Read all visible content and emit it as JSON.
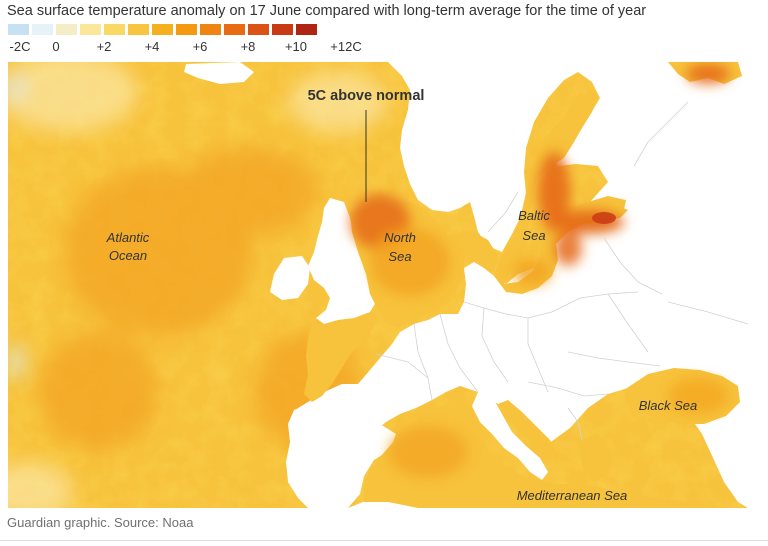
{
  "title": "Sea surface temperature anomaly on 17 June compared with long-term average for the time of year",
  "legend": {
    "ticks": [
      "-2C",
      "0",
      "+2",
      "+4",
      "+6",
      "+8",
      "+10",
      "+12C"
    ],
    "colors": [
      "#c6e1f3",
      "#e7f1f8",
      "#f4edc6",
      "#fbe69a",
      "#f9d865",
      "#f7c540",
      "#f5b020",
      "#f39a10",
      "#ef8412",
      "#e86b14",
      "#dc5214",
      "#c93a14",
      "#b02414"
    ]
  },
  "map": {
    "labels": {
      "atlantic": [
        "Atlantic",
        "Ocean"
      ],
      "north_sea": [
        "North",
        "Sea"
      ],
      "baltic": [
        "Baltic",
        "Sea"
      ],
      "black_sea": "Black Sea",
      "mediterranean": "Mediterranean Sea"
    },
    "annotation": "5C above normal",
    "colors": {
      "land": "#ffffff",
      "border": "#d2d2d2",
      "ocean": "#f7c23c",
      "warm": "#f3a420",
      "hot": "#e56a14"
    }
  },
  "source": "Guardian graphic. Source: Noaa"
}
